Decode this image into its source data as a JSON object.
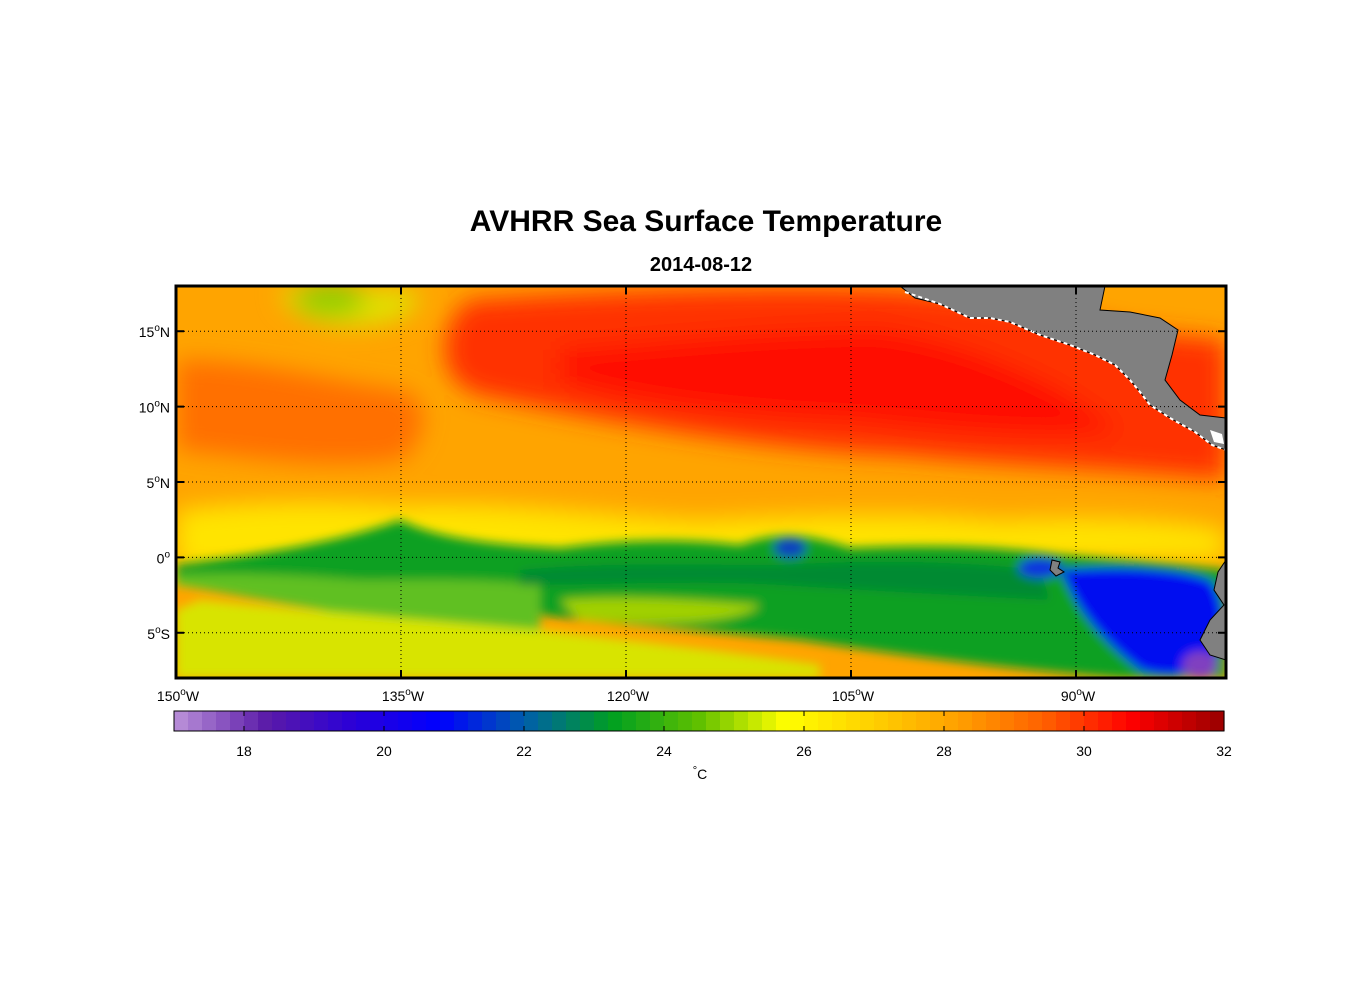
{
  "title": "AVHRR Sea Surface Temperature",
  "subtitle": "2014-08-12",
  "map": {
    "lon_range": [
      -150,
      -80
    ],
    "lat_range": [
      -8,
      18
    ],
    "lon_ticks": [
      {
        "value": -150,
        "num": "150",
        "deg": "o",
        "hem": "W"
      },
      {
        "value": -135,
        "num": "135",
        "deg": "o",
        "hem": "W"
      },
      {
        "value": -120,
        "num": "120",
        "deg": "o",
        "hem": "W"
      },
      {
        "value": -105,
        "num": "105",
        "deg": "o",
        "hem": "W"
      },
      {
        "value": -90,
        "num": "90",
        "deg": "o",
        "hem": "W"
      }
    ],
    "lat_ticks": [
      {
        "value": 15,
        "num": "15",
        "deg": "o",
        "hem": "N"
      },
      {
        "value": 10,
        "num": "10",
        "deg": "o",
        "hem": "N"
      },
      {
        "value": 5,
        "num": "5",
        "deg": "o",
        "hem": "N"
      },
      {
        "value": 0,
        "num": "0",
        "deg": "o",
        "hem": ""
      },
      {
        "value": -5,
        "num": "5",
        "deg": "o",
        "hem": "S"
      }
    ],
    "gridlines": "dotted",
    "land_color": "#808080"
  },
  "colorbar": {
    "range": [
      17,
      32
    ],
    "ticks": [
      "18",
      "20",
      "22",
      "24",
      "26",
      "28",
      "30",
      "32"
    ],
    "unit_deg": "°",
    "unit": "C",
    "colors": [
      "#b58ad6",
      "#5a1aa8",
      "#2a00d8",
      "#0000ff",
      "#0060a8",
      "#00a020",
      "#60c000",
      "#ffff00",
      "#ffd000",
      "#ffa000",
      "#ff6000",
      "#ff0000",
      "#a00000"
    ]
  }
}
